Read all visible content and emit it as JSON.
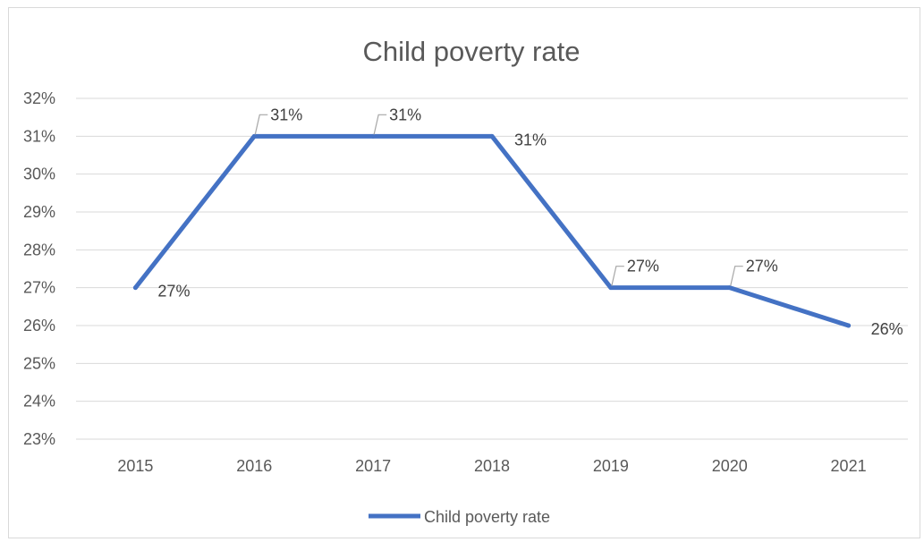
{
  "chart_data": {
    "type": "line",
    "title": "Child poverty rate",
    "categories": [
      "2015",
      "2016",
      "2017",
      "2018",
      "2019",
      "2020",
      "2021"
    ],
    "series": [
      {
        "name": "Child poverty rate",
        "values": [
          27,
          31,
          31,
          31,
          27,
          27,
          26
        ],
        "labels": [
          "27%",
          "31%",
          "31%",
          "31%",
          "27%",
          "27%",
          "26%"
        ],
        "color": "#4472c4"
      }
    ],
    "ylim": [
      23,
      32
    ],
    "yticks": [
      "23%",
      "24%",
      "25%",
      "26%",
      "27%",
      "28%",
      "29%",
      "30%",
      "31%",
      "32%"
    ],
    "grid": true,
    "legend": "bottom"
  }
}
